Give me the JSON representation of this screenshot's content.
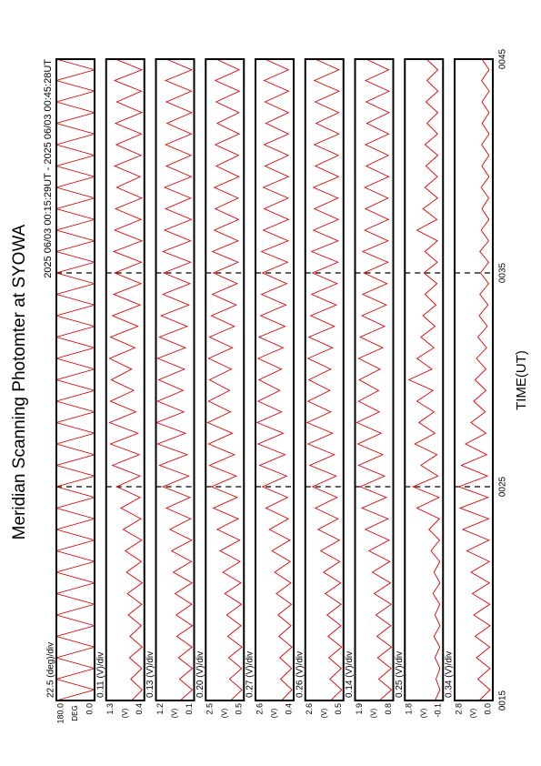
{
  "chart_data": {
    "type": "line",
    "title": "Meridian Scanning Photomter at SYOWA",
    "subtitle": "2025 06/03 00:15:29UT - 2025 06/03 00:45:28UT",
    "x_label": "TIME(UT)",
    "xlim": [
      15,
      45
    ],
    "xticks": [
      {
        "value": 15,
        "label": "0015"
      },
      {
        "value": 25,
        "label": "0025"
      },
      {
        "value": 35,
        "label": "0035"
      },
      {
        "value": 45,
        "label": "0045"
      }
    ],
    "x": [
      15,
      15.5,
      16,
      16.5,
      17,
      17.5,
      18,
      18.5,
      19,
      19.5,
      20,
      20.5,
      21,
      21.5,
      22,
      22.5,
      23,
      23.5,
      24,
      24.5,
      25,
      25.5,
      26,
      26.5,
      27,
      27.5,
      28,
      28.5,
      29,
      29.5,
      30,
      30.5,
      31,
      31.5,
      32,
      32.5,
      33,
      33.5,
      34,
      34.5,
      35,
      35.5,
      36,
      36.5,
      37,
      37.5,
      38,
      38.5,
      39,
      39.5,
      40,
      40.5,
      41,
      41.5,
      42,
      42.5,
      43,
      43.5,
      44,
      44.5,
      45
    ],
    "panels": [
      {
        "scale_label": "22.5 (deg)/div",
        "y_label": "DEG",
        "color": "#e00000",
        "ylim": [
          0,
          180
        ],
        "yticks": [
          {
            "value": 0,
            "label": "0.0"
          },
          {
            "value": 180,
            "label": "180.0"
          }
        ],
        "values": [
          180,
          0,
          180,
          0,
          180,
          0,
          180,
          0,
          180,
          0,
          180,
          0,
          180,
          0,
          180,
          0,
          180,
          0,
          180,
          0,
          180,
          0,
          180,
          0,
          180,
          0,
          180,
          0,
          180,
          0,
          180,
          0,
          180,
          0,
          180,
          0,
          180,
          0,
          180,
          0,
          180,
          0,
          180,
          0,
          180,
          0,
          180,
          0,
          180,
          0,
          180,
          0,
          180,
          0,
          180,
          0,
          180,
          0,
          180,
          0,
          180
        ]
      },
      {
        "scale_label": "0.11 (V)/div",
        "y_label": "(V)",
        "color": "#e00000",
        "ylim": [
          0.4,
          1.3
        ],
        "yticks": [
          0.4,
          1.3
        ],
        "values": [
          0.7,
          0.45,
          0.72,
          0.46,
          0.75,
          0.45,
          0.74,
          0.47,
          0.78,
          0.46,
          0.8,
          0.45,
          0.82,
          0.47,
          0.85,
          0.46,
          0.9,
          0.48,
          0.95,
          0.5,
          1.05,
          0.5,
          1.15,
          0.52,
          1.2,
          0.55,
          1.22,
          0.6,
          1.2,
          0.65,
          1.18,
          0.7,
          1.22,
          0.62,
          1.2,
          0.55,
          1.15,
          0.5,
          1.12,
          0.48,
          1.1,
          0.47,
          1.12,
          0.46,
          1.1,
          0.48,
          1.08,
          0.46,
          1.05,
          0.5,
          1.1,
          0.48,
          1.06,
          0.47,
          1.08,
          0.46,
          1.05,
          0.47,
          1.1,
          0.46,
          1.08
        ]
      },
      {
        "scale_label": "0.13 (V)/div",
        "y_label": "(V)",
        "color": "#e00000",
        "ylim": [
          0.1,
          1.2
        ],
        "yticks": [
          0.1,
          1.2
        ],
        "values": [
          0.5,
          0.15,
          0.52,
          0.15,
          0.55,
          0.16,
          0.6,
          0.15,
          0.62,
          0.17,
          0.65,
          0.16,
          0.7,
          0.18,
          0.75,
          0.17,
          0.8,
          0.2,
          0.9,
          0.22,
          1.0,
          0.25,
          1.1,
          0.3,
          1.15,
          0.35,
          1.18,
          0.4,
          1.15,
          0.42,
          1.12,
          0.38,
          1.15,
          0.35,
          1.1,
          0.3,
          1.05,
          0.25,
          1.0,
          0.22,
          0.98,
          0.2,
          1.0,
          0.2,
          0.95,
          0.18,
          0.92,
          0.2,
          0.95,
          0.18,
          0.9,
          0.19,
          0.92,
          0.18,
          0.88,
          0.17,
          0.9,
          0.18,
          0.92,
          0.17,
          0.9
        ]
      },
      {
        "scale_label": "0.20 (V)/div",
        "y_label": "(V)",
        "color": "#e00000",
        "ylim": [
          0.5,
          2.5
        ],
        "yticks": [
          0.5,
          2.5
        ],
        "values": [
          1.2,
          0.6,
          1.25,
          0.62,
          1.3,
          0.6,
          1.35,
          0.65,
          1.4,
          0.63,
          1.5,
          0.66,
          1.6,
          0.7,
          1.75,
          0.72,
          1.9,
          0.8,
          2.1,
          0.85,
          2.2,
          0.9,
          2.3,
          1.0,
          2.35,
          1.1,
          2.4,
          1.2,
          2.35,
          1.25,
          2.3,
          1.15,
          2.35,
          1.1,
          2.3,
          1.0,
          2.2,
          0.9,
          2.15,
          0.85,
          2.1,
          0.8,
          2.15,
          0.8,
          2.05,
          0.78,
          2.0,
          0.8,
          2.05,
          0.76,
          1.95,
          0.78,
          2.0,
          0.75,
          1.9,
          0.76,
          1.95,
          0.74,
          2.0,
          0.75,
          1.95
        ]
      },
      {
        "scale_label": "0.27 (V)/div",
        "y_label": "(V)",
        "color": "#e00000",
        "ylim": [
          0.4,
          2.6
        ],
        "yticks": [
          0.4,
          2.6
        ],
        "values": [
          1.1,
          0.5,
          1.15,
          0.52,
          1.2,
          0.5,
          1.25,
          0.55,
          1.3,
          0.53,
          1.4,
          0.56,
          1.5,
          0.6,
          1.65,
          0.62,
          1.8,
          0.7,
          2.0,
          0.75,
          2.2,
          0.8,
          2.35,
          0.9,
          2.45,
          1.0,
          2.5,
          1.1,
          2.45,
          1.2,
          2.4,
          1.1,
          2.45,
          1.0,
          2.4,
          0.9,
          2.3,
          0.85,
          2.25,
          0.8,
          2.2,
          0.75,
          2.25,
          0.72,
          2.15,
          0.7,
          2.1,
          0.72,
          2.15,
          0.7,
          2.05,
          0.71,
          2.1,
          0.7,
          2.0,
          0.7,
          2.05,
          0.69,
          2.1,
          0.7,
          2.05
        ]
      },
      {
        "scale_label": "0.26 (V)/div",
        "y_label": "(V)",
        "color": "#e00000",
        "ylim": [
          0.5,
          2.6
        ],
        "yticks": [
          0.5,
          2.6
        ],
        "values": [
          1.2,
          0.6,
          1.25,
          0.62,
          1.3,
          0.6,
          1.35,
          0.64,
          1.4,
          0.63,
          1.5,
          0.65,
          1.6,
          0.7,
          1.75,
          0.72,
          1.9,
          0.8,
          2.05,
          0.85,
          2.2,
          0.9,
          2.35,
          1.0,
          2.45,
          1.1,
          2.5,
          1.2,
          2.45,
          1.25,
          2.4,
          1.2,
          2.45,
          1.1,
          2.4,
          1.0,
          2.3,
          0.9,
          2.25,
          0.85,
          2.2,
          0.8,
          2.25,
          0.8,
          2.15,
          0.78,
          2.1,
          0.8,
          2.15,
          0.76,
          2.05,
          0.78,
          2.1,
          0.75,
          2.0,
          0.76,
          2.05,
          0.74,
          2.1,
          0.75,
          2.05
        ]
      },
      {
        "scale_label": "0.14 (V)/div",
        "y_label": "(V)",
        "color": "#e00000",
        "ylim": [
          0.8,
          1.9
        ],
        "yticks": [
          0.8,
          1.9
        ],
        "values": [
          1.2,
          0.85,
          1.22,
          0.86,
          1.25,
          0.85,
          1.27,
          0.87,
          1.3,
          0.86,
          1.35,
          0.88,
          1.4,
          0.9,
          1.5,
          0.92,
          1.6,
          0.95,
          1.7,
          1.0,
          1.75,
          1.05,
          1.8,
          1.1,
          1.82,
          1.15,
          1.85,
          1.2,
          1.8,
          1.22,
          1.78,
          1.18,
          1.8,
          1.1,
          1.75,
          1.05,
          1.7,
          1.0,
          1.68,
          0.98,
          1.65,
          0.95,
          1.68,
          0.95,
          1.62,
          0.94,
          1.6,
          0.95,
          1.62,
          0.93,
          1.58,
          0.94,
          1.6,
          0.93,
          1.56,
          0.92,
          1.58,
          0.92,
          1.6,
          0.93,
          1.58
        ]
      },
      {
        "scale_label": "0.25 (V)/div",
        "y_label": "(V)",
        "color": "#e00000",
        "ylim": [
          -0.1,
          1.8
        ],
        "yticks": [
          -0.1,
          1.8
        ],
        "values": [
          0.3,
          0.05,
          0.25,
          0.05,
          0.3,
          0.06,
          0.35,
          0.05,
          0.3,
          0.06,
          0.4,
          0.05,
          0.35,
          0.06,
          0.5,
          0.07,
          0.6,
          0.08,
          1.2,
          0.1,
          1.4,
          0.15,
          1.0,
          0.2,
          1.3,
          0.3,
          1.1,
          0.35,
          1.2,
          0.4,
          1.6,
          0.45,
          1.2,
          0.35,
          1.0,
          0.3,
          0.9,
          0.25,
          0.8,
          0.2,
          0.85,
          0.18,
          0.8,
          0.18,
          1.2,
          0.2,
          0.9,
          0.17,
          0.8,
          0.18,
          0.75,
          0.16,
          0.8,
          0.17,
          0.7,
          0.16,
          0.75,
          0.15,
          0.7,
          0.16,
          0.72
        ]
      },
      {
        "scale_label": "0.34 (V)/div",
        "y_label": "(V)",
        "color": "#e00000",
        "ylim": [
          0.0,
          2.8
        ],
        "yticks": [
          {
            "value": 0,
            "label": "0.0"
          },
          2.8
        ],
        "values": [
          1.0,
          0.2,
          1.1,
          0.2,
          1.2,
          0.22,
          1.3,
          0.2,
          1.4,
          0.22,
          1.5,
          0.25,
          1.6,
          0.25,
          1.9,
          0.28,
          2.2,
          0.3,
          2.4,
          0.35,
          2.5,
          0.4,
          2.3,
          0.45,
          2.0,
          0.5,
          1.6,
          0.55,
          1.4,
          0.5,
          1.3,
          0.5,
          1.2,
          0.45,
          1.1,
          0.4,
          1.0,
          0.35,
          0.95,
          0.3,
          0.9,
          0.3,
          0.95,
          0.3,
          0.85,
          0.28,
          0.8,
          0.3,
          0.85,
          0.28,
          0.8,
          0.28,
          0.82,
          0.27,
          0.78,
          0.27,
          0.8,
          0.26,
          0.82,
          0.27,
          0.8
        ]
      }
    ]
  }
}
